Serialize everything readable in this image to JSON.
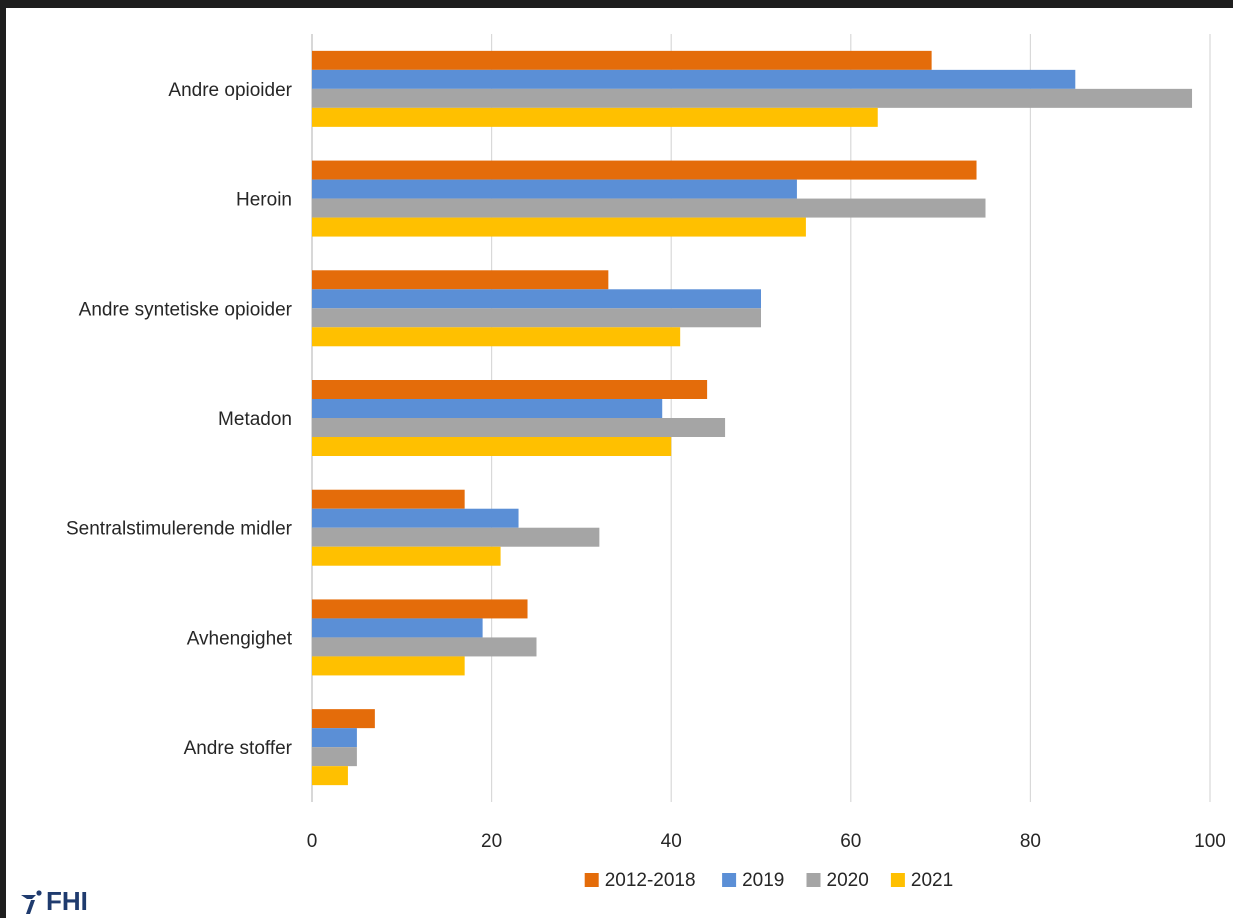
{
  "chart_data": {
    "type": "bar",
    "orientation": "horizontal",
    "categories": [
      "Andre opioider",
      "Heroin",
      "Andre syntetiske opioider",
      "Metadon",
      "Sentralstimulerende midler",
      "Avhengighet",
      "Andre  stoffer"
    ],
    "series": [
      {
        "name": "2012-2018",
        "color": "#e46c0a",
        "values": [
          69,
          74,
          33,
          44,
          17,
          24,
          7
        ]
      },
      {
        "name": "2019",
        "color": "#5b8fd6",
        "values": [
          85,
          54,
          50,
          39,
          23,
          19,
          5
        ]
      },
      {
        "name": "2020",
        "color": "#a5a5a5",
        "values": [
          98,
          75,
          50,
          46,
          32,
          25,
          5
        ]
      },
      {
        "name": "2021",
        "color": "#ffc000",
        "values": [
          63,
          55,
          41,
          40,
          21,
          17,
          4
        ]
      }
    ],
    "xlim": [
      0,
      100
    ],
    "xticks": [
      0,
      20,
      40,
      60,
      80,
      100
    ],
    "grid": true,
    "legend_position": "bottom"
  },
  "logo": {
    "text": "FHI"
  }
}
